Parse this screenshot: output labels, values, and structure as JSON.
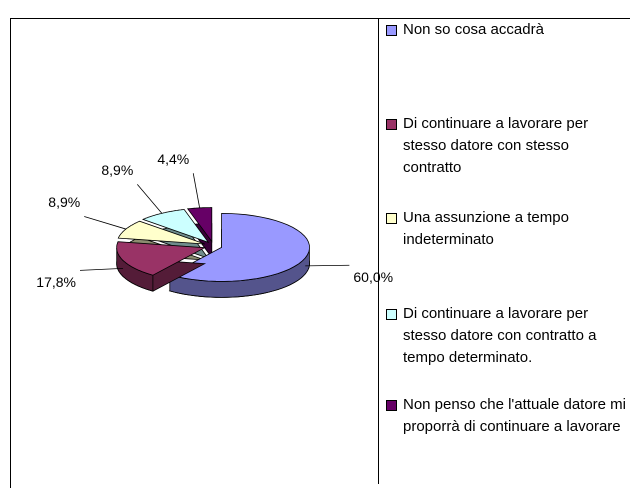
{
  "chart_data": {
    "type": "pie",
    "categories": [
      "Non so cosa accadrà",
      "Di continuare a lavorare per stesso datore con stesso contratto",
      "Una assunzione a tempo indeterminato",
      "Di continuare a lavorare per stesso datore con contratto a tempo determinato.",
      "Non penso che l'attuale datore mi proporrà di continuare a lavorare"
    ],
    "values": [
      60,
      17.8,
      8.9,
      8.9,
      4.4
    ],
    "value_labels": [
      "60,0%",
      "17,8%",
      "8,9%",
      "8,9%",
      "4,4%"
    ],
    "colors": [
      "#9999ff",
      "#993366",
      "#ffffcc",
      "#ccffff",
      "#660066"
    ],
    "legend": "right"
  }
}
